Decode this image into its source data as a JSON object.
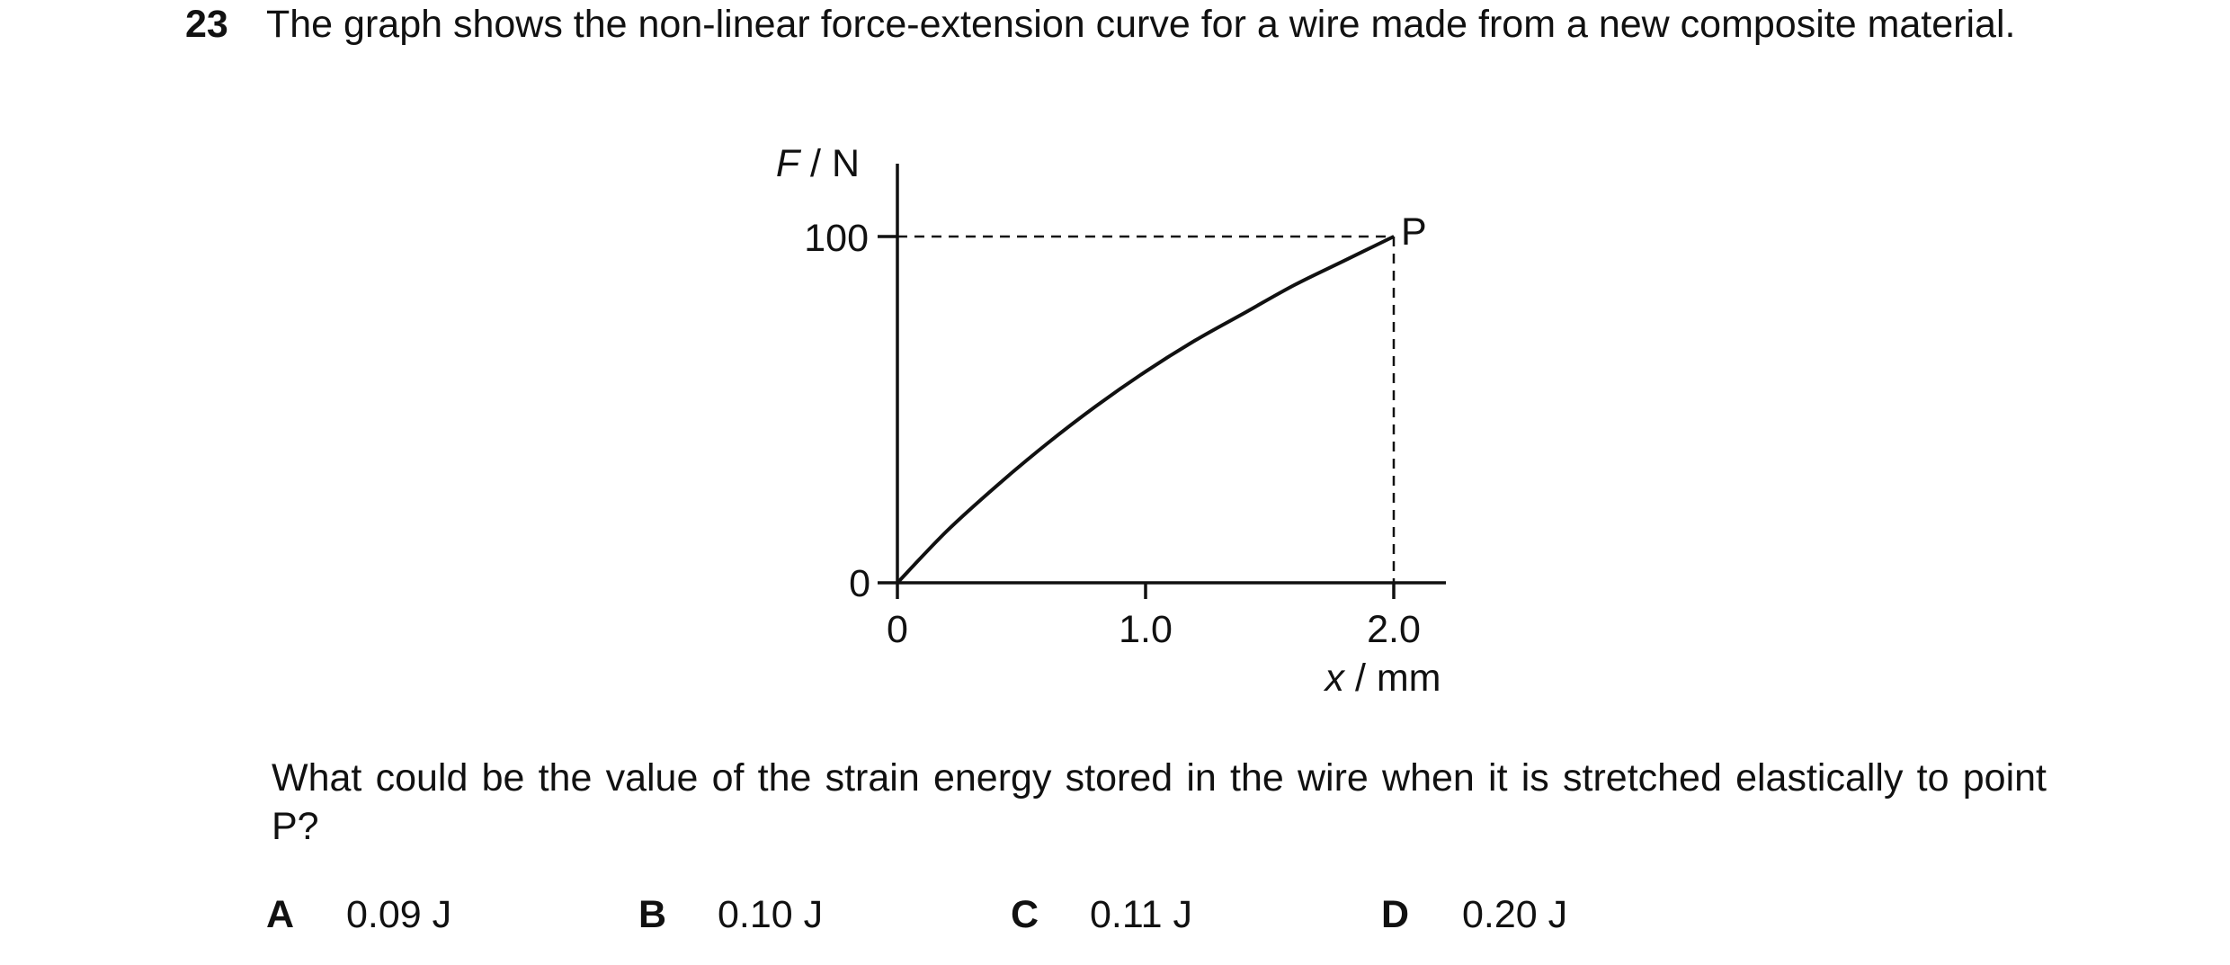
{
  "question": {
    "number": "23",
    "stem": "The graph shows the non-linear force-extension curve for a wire made from a new composite material.",
    "prompt": "What could be the value of the strain energy stored in the wire when it is stretched elastically to point P?"
  },
  "chart_data": {
    "type": "line",
    "title": "",
    "ylabel_var": "F",
    "ylabel_unit": "N",
    "xlabel_var": "x",
    "xlabel_unit": "mm",
    "x_ticks": [
      "0",
      "1.0",
      "2.0"
    ],
    "y_ticks": [
      "0",
      "100"
    ],
    "xlim": [
      0,
      2.2
    ],
    "ylim": [
      0,
      100
    ],
    "grid": false,
    "series": [
      {
        "x": [
          0,
          0.2,
          0.4,
          0.6,
          0.8,
          1.0,
          1.2,
          1.4,
          1.6,
          1.8,
          2.0
        ],
        "y": [
          0,
          15,
          28,
          40,
          51,
          61,
          70,
          78,
          86,
          93,
          100
        ]
      }
    ],
    "annotations": [
      {
        "label": "P",
        "x": 2.0,
        "y": 100
      }
    ]
  },
  "options": [
    {
      "letter": "A",
      "value": "0.09 J"
    },
    {
      "letter": "B",
      "value": "0.10 J"
    },
    {
      "letter": "C",
      "value": "0.11 J"
    },
    {
      "letter": "D",
      "value": "0.20 J"
    }
  ]
}
